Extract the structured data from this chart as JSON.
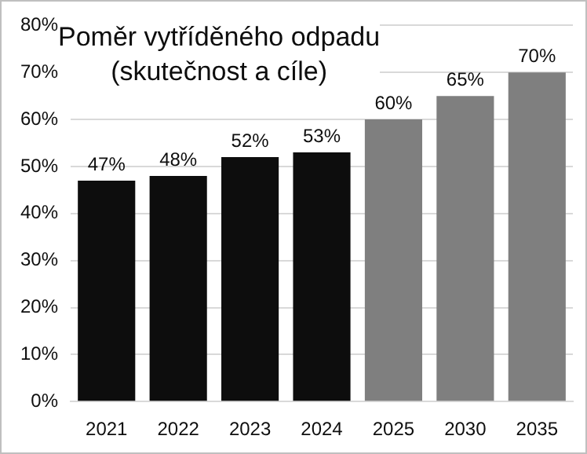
{
  "chart_data": {
    "type": "bar",
    "title": "Poměr vytříděného odpadu\n(skutečnost a cíle)",
    "categories": [
      "2021",
      "2022",
      "2023",
      "2024",
      "2025",
      "2030",
      "2035"
    ],
    "values": [
      47,
      48,
      52,
      53,
      60,
      65,
      70
    ],
    "colors": [
      "#0d0d0d",
      "#0d0d0d",
      "#0d0d0d",
      "#0d0d0d",
      "#7f7f7f",
      "#7f7f7f",
      "#7f7f7f"
    ],
    "value_labels": [
      "47%",
      "48%",
      "52%",
      "53%",
      "60%",
      "65%",
      "70%"
    ],
    "ylim": [
      0,
      80
    ],
    "yticks": [
      {
        "value": 0,
        "label": "0%"
      },
      {
        "value": 10,
        "label": "10%"
      },
      {
        "value": 20,
        "label": "20%"
      },
      {
        "value": 30,
        "label": "30%"
      },
      {
        "value": 40,
        "label": "40%"
      },
      {
        "value": 50,
        "label": "50%"
      },
      {
        "value": 60,
        "label": "60%"
      },
      {
        "value": 70,
        "label": "70%"
      },
      {
        "value": 80,
        "label": "80%"
      }
    ],
    "grid": "y"
  }
}
